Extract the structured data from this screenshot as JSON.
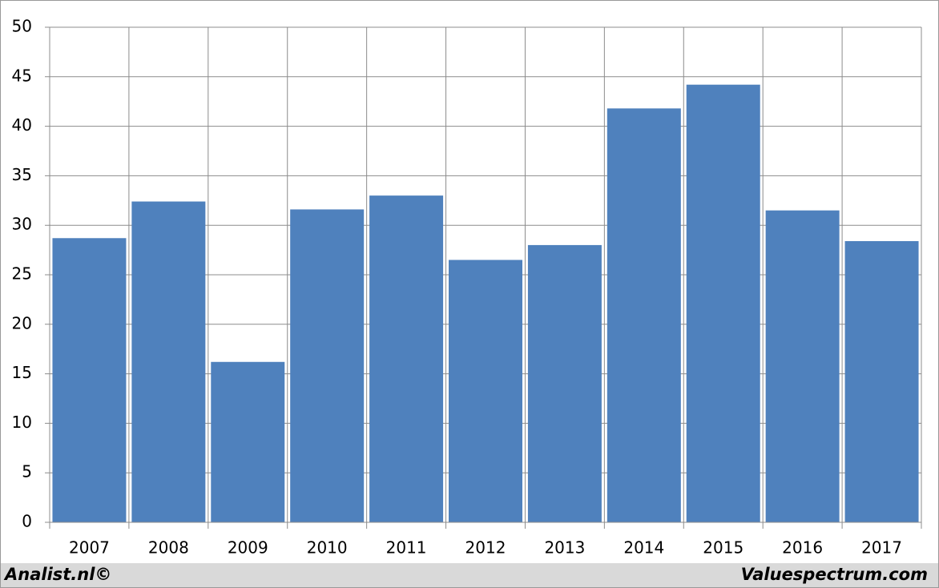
{
  "chart_data": {
    "type": "bar",
    "categories": [
      "2007",
      "2008",
      "2009",
      "2010",
      "2011",
      "2012",
      "2013",
      "2014",
      "2015",
      "2016",
      "2017"
    ],
    "values": [
      28.7,
      32.4,
      16.2,
      31.6,
      33.0,
      26.5,
      28.0,
      41.8,
      44.2,
      31.5,
      28.4
    ],
    "color": "#4f81bd",
    "ylim": [
      0,
      50
    ],
    "yticks": [
      0,
      5,
      10,
      15,
      20,
      25,
      30,
      35,
      40,
      45,
      50
    ],
    "grid": true,
    "source_left": "Analist.nl©",
    "source_right": "Valuespectrum.com"
  }
}
